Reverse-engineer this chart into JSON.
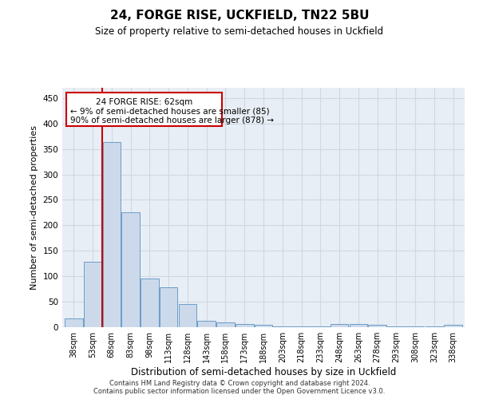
{
  "title": "24, FORGE RISE, UCKFIELD, TN22 5BU",
  "subtitle": "Size of property relative to semi-detached houses in Uckfield",
  "xlabel": "Distribution of semi-detached houses by size in Uckfield",
  "ylabel": "Number of semi-detached properties",
  "bar_color": "#ccd9ea",
  "bar_edge_color": "#6a9dc8",
  "categories": [
    "38sqm",
    "53sqm",
    "68sqm",
    "83sqm",
    "98sqm",
    "113sqm",
    "128sqm",
    "143sqm",
    "158sqm",
    "173sqm",
    "188sqm",
    "203sqm",
    "218sqm",
    "233sqm",
    "248sqm",
    "263sqm",
    "278sqm",
    "293sqm",
    "308sqm",
    "323sqm",
    "338sqm"
  ],
  "values": [
    18,
    128,
    363,
    226,
    95,
    78,
    45,
    12,
    9,
    7,
    4,
    1,
    1,
    1,
    6,
    7,
    4,
    2,
    1,
    1,
    4
  ],
  "ylim": [
    0,
    470
  ],
  "yticks": [
    0,
    50,
    100,
    150,
    200,
    250,
    300,
    350,
    400,
    450
  ],
  "red_line_x": 1.5,
  "property_label": "24 FORGE RISE: 62sqm",
  "pct_smaller": "9% of semi-detached houses are smaller (85)",
  "pct_larger": "90% of semi-detached houses are larger (878)",
  "annotation_box_color": "#ffffff",
  "annotation_box_edge": "#cc0000",
  "red_line_color": "#cc0000",
  "grid_color": "#d0d8e4",
  "bg_color": "#e8eef5",
  "footer_line1": "Contains HM Land Registry data © Crown copyright and database right 2024.",
  "footer_line2": "Contains public sector information licensed under the Open Government Licence v3.0."
}
